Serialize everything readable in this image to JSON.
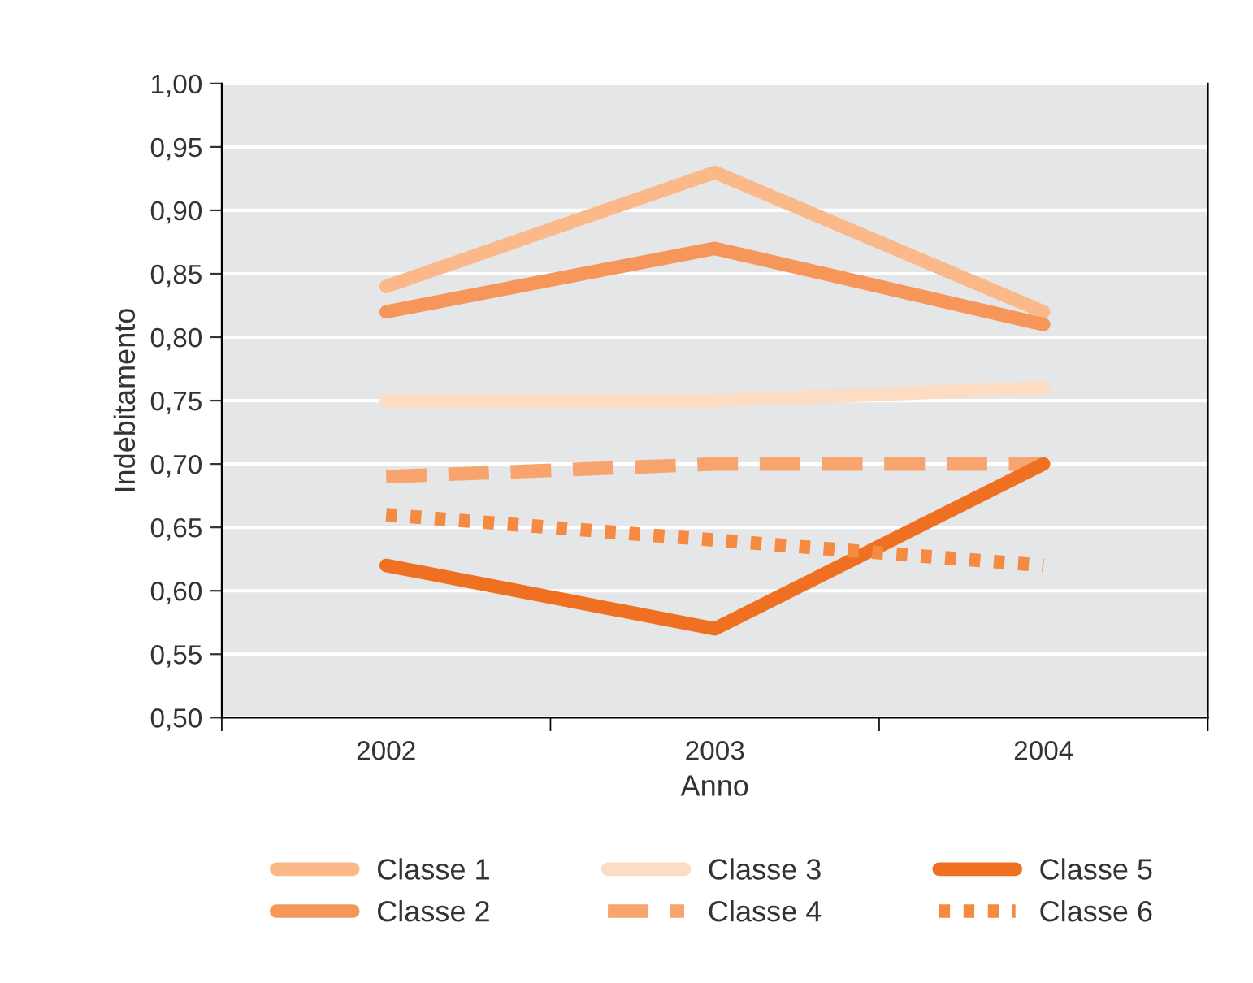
{
  "chart_data": {
    "type": "line",
    "xlabel": "Anno",
    "ylabel": "Indebitamento",
    "categories": [
      "2002",
      "2003",
      "2004"
    ],
    "series": [
      {
        "name": "Classe 1",
        "color": "#fbb98a",
        "values": [
          0.84,
          0.93,
          0.82
        ],
        "line_style": "solid"
      },
      {
        "name": "Classe 2",
        "color": "#f6965a",
        "values": [
          0.82,
          0.87,
          0.81
        ],
        "line_style": "solid"
      },
      {
        "name": "Classe 3",
        "color": "#fddcc4",
        "values": [
          0.75,
          0.75,
          0.76
        ],
        "line_style": "solid"
      },
      {
        "name": "Classe 4",
        "color": "#f8a46e",
        "values": [
          0.69,
          0.7,
          0.7
        ],
        "line_style": "dashed"
      },
      {
        "name": "Classe 5",
        "color": "#f07022",
        "values": [
          0.62,
          0.57,
          0.7
        ],
        "line_style": "solid"
      },
      {
        "name": "Classe 6",
        "color": "#f58a40",
        "values": [
          0.66,
          0.64,
          0.62
        ],
        "line_style": "dotted"
      }
    ],
    "ylim": [
      0.5,
      1.0
    ],
    "yticks": [
      {
        "value": 0.5,
        "label": "0,50"
      },
      {
        "value": 0.55,
        "label": "0,55"
      },
      {
        "value": 0.6,
        "label": "0,60"
      },
      {
        "value": 0.65,
        "label": "0,65"
      },
      {
        "value": 0.7,
        "label": "0,70"
      },
      {
        "value": 0.75,
        "label": "0,75"
      },
      {
        "value": 0.8,
        "label": "0,80"
      },
      {
        "value": 0.85,
        "label": "0,85"
      },
      {
        "value": 0.9,
        "label": "0,90"
      },
      {
        "value": 0.95,
        "label": "0,95"
      },
      {
        "value": 1.0,
        "label": "1,00"
      }
    ],
    "grid": "y",
    "legend": "bottom",
    "marker": "none"
  }
}
